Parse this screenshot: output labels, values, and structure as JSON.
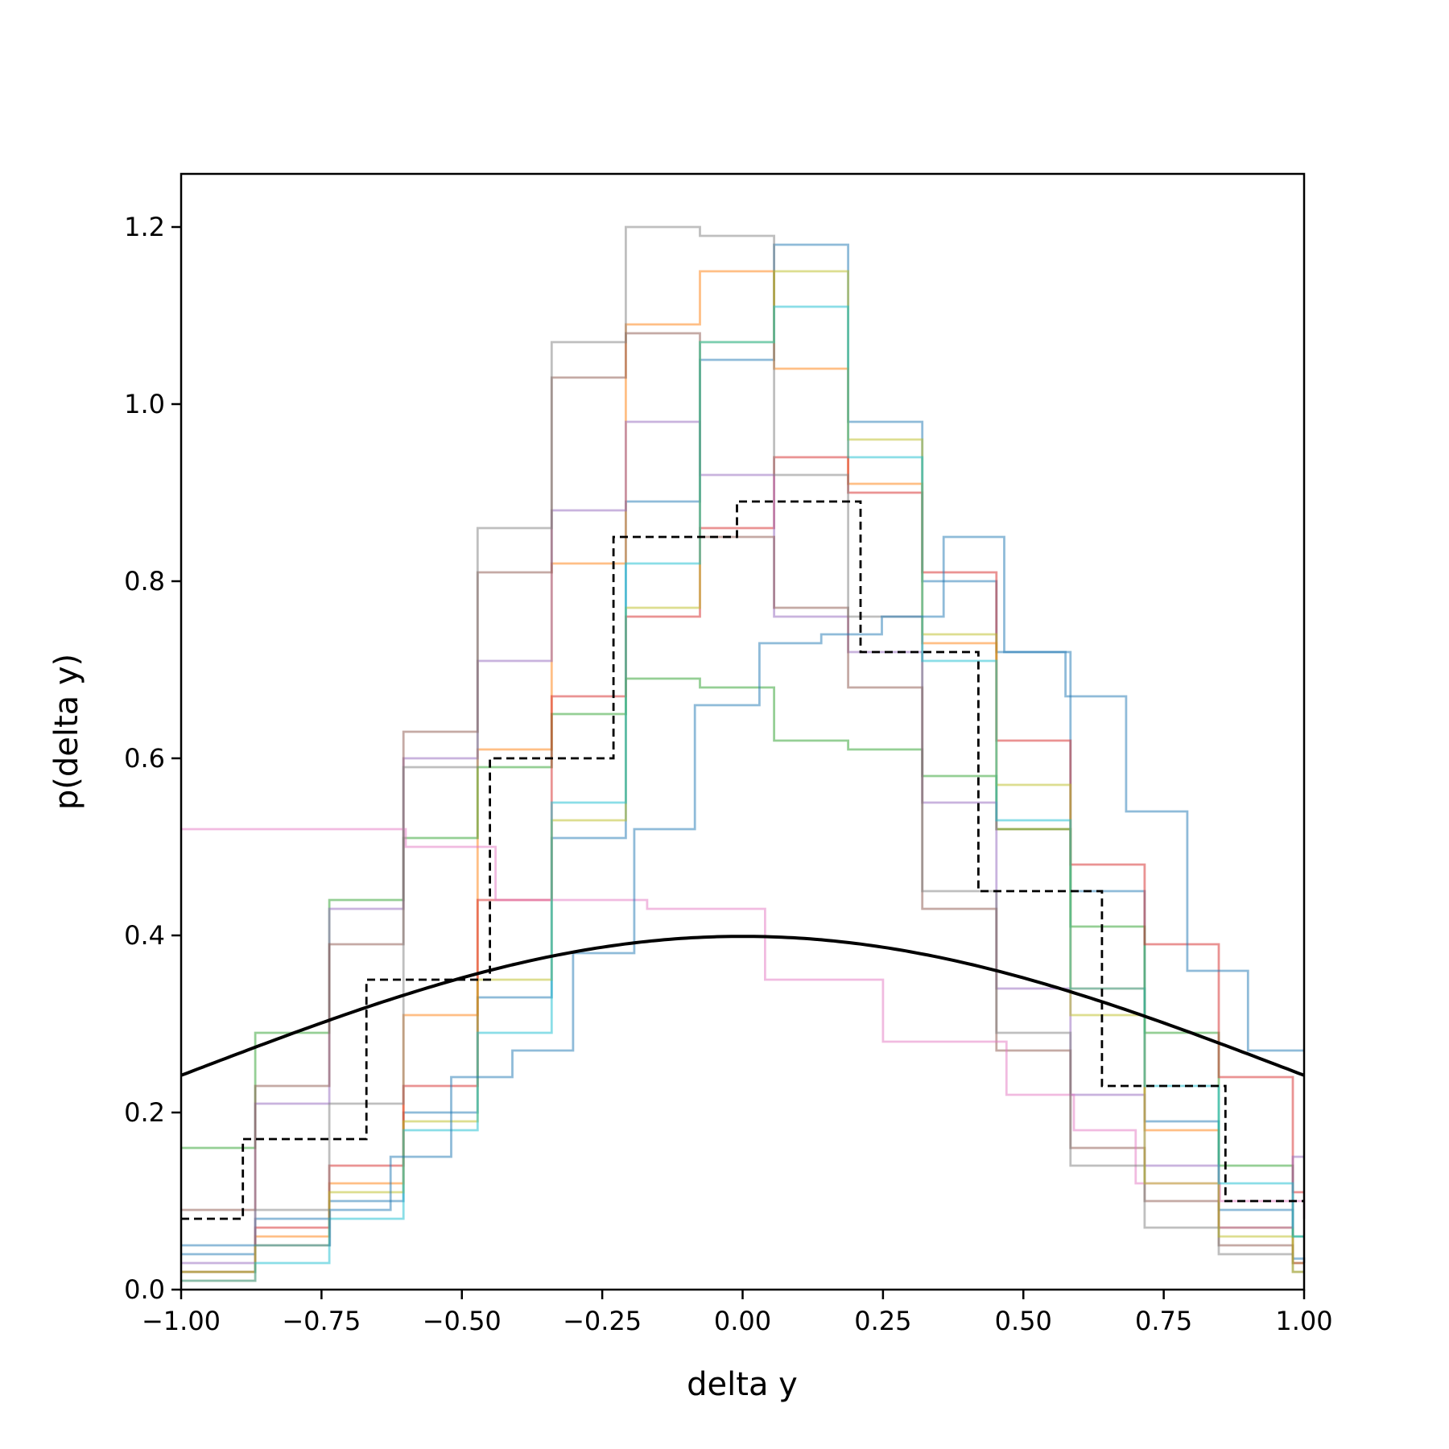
{
  "chart_data": {
    "type": "line",
    "title": "",
    "xlabel": "delta y",
    "ylabel": "p(delta y)",
    "xlim": [
      -1.0,
      1.0
    ],
    "ylim": [
      0.0,
      1.26
    ],
    "x_ticks": [
      "−1.00",
      "−0.75",
      "−0.50",
      "−0.25",
      "0.00",
      "0.25",
      "0.50",
      "0.75",
      "1.00"
    ],
    "y_ticks": [
      "0.0",
      "0.2",
      "0.4",
      "0.6",
      "0.8",
      "1.0",
      "1.2"
    ],
    "grid": false,
    "legend": false,
    "series": [
      {
        "kind": "step",
        "color": "#1f77b4",
        "edges": [
          -1.0,
          -0.868,
          -0.736,
          -0.604,
          -0.472,
          -0.34,
          -0.208,
          -0.076,
          0.056,
          0.188,
          0.32,
          0.452,
          0.584,
          0.716,
          0.848,
          0.98,
          1.0
        ],
        "values": [
          0.04,
          0.08,
          0.1,
          0.2,
          0.33,
          0.51,
          0.89,
          1.05,
          1.18,
          0.98,
          0.8,
          0.72,
          0.45,
          0.19,
          0.09,
          0.035,
          0.03
        ]
      },
      {
        "kind": "step",
        "color": "#ff7f0e",
        "edges": [
          -1.0,
          -0.868,
          -0.736,
          -0.604,
          -0.472,
          -0.34,
          -0.208,
          -0.076,
          0.056,
          0.188,
          0.32,
          0.452,
          0.584,
          0.716,
          0.848,
          0.98,
          1.0
        ],
        "values": [
          0.01,
          0.06,
          0.12,
          0.31,
          0.61,
          0.82,
          1.09,
          1.15,
          1.04,
          0.91,
          0.73,
          0.52,
          0.34,
          0.18,
          0.07,
          0.03,
          0.03
        ]
      },
      {
        "kind": "step",
        "color": "#2ca02c",
        "edges": [
          -1.0,
          -0.868,
          -0.736,
          -0.604,
          -0.472,
          -0.34,
          -0.208,
          -0.076,
          0.056,
          0.188,
          0.32,
          0.452,
          0.584,
          0.716,
          0.848,
          0.98,
          1.0
        ],
        "values": [
          0.16,
          0.29,
          0.44,
          0.51,
          0.59,
          0.65,
          0.69,
          0.68,
          0.62,
          0.61,
          0.58,
          0.52,
          0.41,
          0.29,
          0.14,
          0.06,
          0.06
        ]
      },
      {
        "kind": "step",
        "color": "#d62728",
        "edges": [
          -1.0,
          -0.868,
          -0.736,
          -0.604,
          -0.472,
          -0.34,
          -0.208,
          -0.076,
          0.056,
          0.188,
          0.32,
          0.452,
          0.584,
          0.716,
          0.848,
          0.98,
          1.0
        ],
        "values": [
          0.02,
          0.07,
          0.14,
          0.23,
          0.44,
          0.67,
          0.76,
          0.86,
          0.94,
          0.9,
          0.81,
          0.62,
          0.48,
          0.39,
          0.24,
          0.11,
          0.11
        ]
      },
      {
        "kind": "step",
        "color": "#9467bd",
        "edges": [
          -1.0,
          -0.868,
          -0.736,
          -0.604,
          -0.472,
          -0.34,
          -0.208,
          -0.076,
          0.056,
          0.188,
          0.32,
          0.452,
          0.584,
          0.716,
          0.848,
          0.98,
          1.0
        ],
        "values": [
          0.03,
          0.21,
          0.43,
          0.6,
          0.71,
          0.88,
          0.98,
          0.92,
          0.76,
          0.72,
          0.55,
          0.34,
          0.22,
          0.14,
          0.07,
          0.15,
          0.15
        ]
      },
      {
        "kind": "step",
        "color": "#8c564b",
        "edges": [
          -1.0,
          -0.868,
          -0.736,
          -0.604,
          -0.472,
          -0.34,
          -0.208,
          -0.076,
          0.056,
          0.188,
          0.32,
          0.452,
          0.584,
          0.716,
          0.848,
          0.98,
          1.0
        ],
        "values": [
          0.09,
          0.23,
          0.39,
          0.63,
          0.81,
          1.03,
          1.08,
          0.85,
          0.77,
          0.68,
          0.43,
          0.27,
          0.16,
          0.1,
          0.05,
          0.03,
          0.03
        ]
      },
      {
        "kind": "step",
        "color": "#e377c2",
        "edges": [
          -1.0,
          -0.81,
          -0.6,
          -0.44,
          -0.38,
          -0.22,
          -0.17,
          0.04,
          0.25,
          0.47,
          0.59,
          0.7,
          0.85,
          1.0
        ],
        "values": [
          0.52,
          0.52,
          0.5,
          0.44,
          0.44,
          0.44,
          0.43,
          0.35,
          0.28,
          0.22,
          0.18,
          0.12,
          0.1,
          0.08
        ]
      },
      {
        "kind": "step",
        "color": "#7f7f7f",
        "edges": [
          -1.0,
          -0.868,
          -0.736,
          -0.604,
          -0.472,
          -0.34,
          -0.208,
          -0.076,
          0.056,
          0.188,
          0.32,
          0.452,
          0.584,
          0.716,
          0.848,
          0.98,
          1.0
        ],
        "values": [
          0.02,
          0.09,
          0.21,
          0.59,
          0.86,
          1.07,
          1.2,
          1.19,
          0.92,
          0.76,
          0.45,
          0.29,
          0.14,
          0.07,
          0.04,
          0.02,
          0.02
        ]
      },
      {
        "kind": "step",
        "color": "#bcbd22",
        "edges": [
          -1.0,
          -0.868,
          -0.736,
          -0.604,
          -0.472,
          -0.34,
          -0.208,
          -0.076,
          0.056,
          0.188,
          0.32,
          0.452,
          0.584,
          0.716,
          0.848,
          0.98,
          1.0
        ],
        "values": [
          0.02,
          0.05,
          0.11,
          0.19,
          0.35,
          0.53,
          0.77,
          1.07,
          1.15,
          0.96,
          0.74,
          0.57,
          0.31,
          0.12,
          0.06,
          0.02,
          0.02
        ]
      },
      {
        "kind": "step",
        "color": "#17becf",
        "edges": [
          -1.0,
          -0.868,
          -0.736,
          -0.604,
          -0.472,
          -0.34,
          -0.208,
          -0.076,
          0.056,
          0.188,
          0.32,
          0.452,
          0.584,
          0.716,
          0.848,
          0.98,
          1.0
        ],
        "values": [
          0.01,
          0.03,
          0.08,
          0.18,
          0.29,
          0.55,
          0.82,
          1.07,
          1.11,
          0.94,
          0.71,
          0.53,
          0.34,
          0.23,
          0.12,
          0.06,
          0.06
        ]
      },
      {
        "kind": "step",
        "color": "#1f77b4",
        "edges": [
          -1.0,
          -0.735,
          -0.627,
          -0.519,
          -0.41,
          -0.302,
          -0.193,
          -0.085,
          0.03,
          0.14,
          0.248,
          0.358,
          0.466,
          0.575,
          0.683,
          0.792,
          0.9,
          1.0
        ],
        "values": [
          0.05,
          0.09,
          0.15,
          0.24,
          0.27,
          0.38,
          0.52,
          0.66,
          0.73,
          0.74,
          0.76,
          0.85,
          0.72,
          0.67,
          0.54,
          0.36,
          0.27,
          0.27
        ]
      },
      {
        "kind": "step",
        "color": "#000000",
        "dashed": true,
        "edges": [
          -1.0,
          -0.89,
          -0.67,
          -0.45,
          -0.23,
          -0.01,
          0.21,
          0.42,
          0.64,
          0.86,
          1.0
        ],
        "values": [
          0.08,
          0.17,
          0.35,
          0.6,
          0.85,
          0.89,
          0.72,
          0.45,
          0.23,
          0.1
        ]
      },
      {
        "kind": "curve",
        "color": "#000000",
        "label": "",
        "function": "normal_pdf",
        "mean": 0.0,
        "std": 1.0
      }
    ]
  }
}
